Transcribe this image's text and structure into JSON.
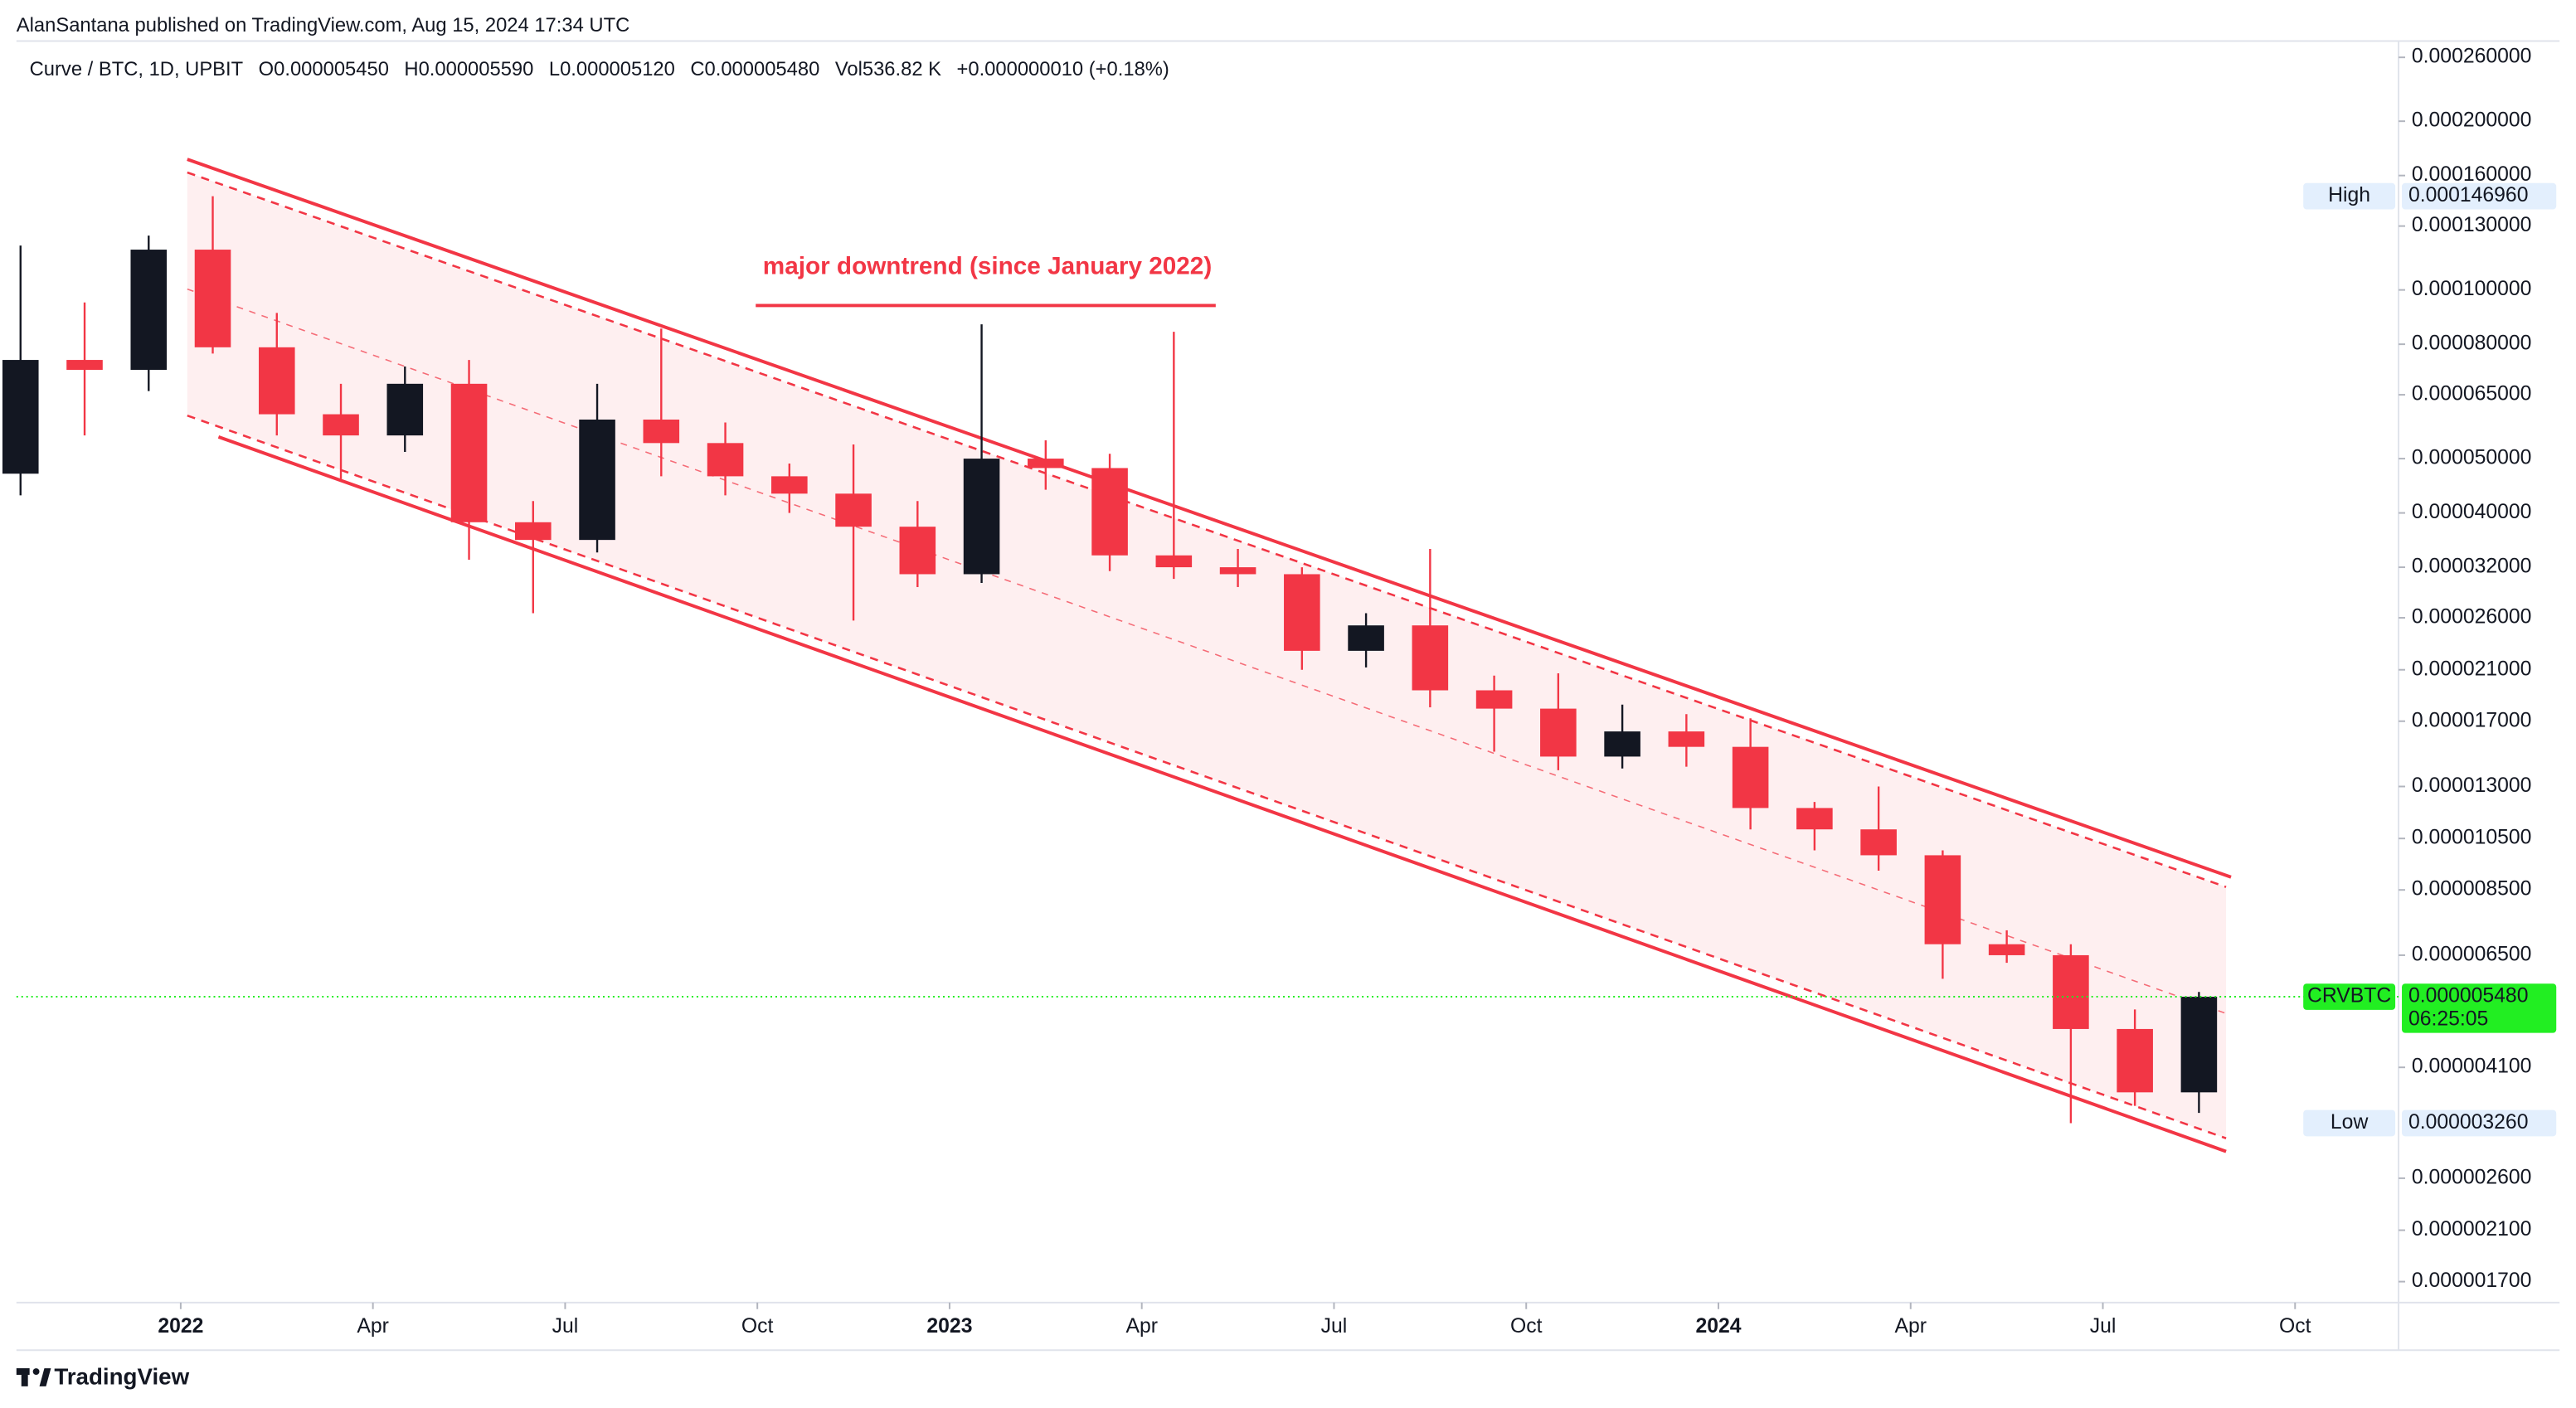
{
  "attribution": "AlanSantana published on TradingView.com, Aug 15, 2024 17:34 UTC",
  "brand": "TradingView",
  "chart_data": {
    "type": "candlestick",
    "legend": {
      "symbol": "Curve / BTC, 1D, UPBIT",
      "items": [
        "O0.000005450",
        "H0.000005590",
        "L0.000005120",
        "C0.000005480",
        "Vol536.82 K",
        "+0.000000010 (+0.18%)"
      ]
    },
    "annotation": "major downtrend (since January 2022)",
    "log_scale": true,
    "grid": false,
    "up_color": "#131722",
    "down_color": "#f23645",
    "x": [
      "2021-10",
      "2021-11",
      "2021-12",
      "2022-01",
      "2022-02",
      "2022-03",
      "2022-04",
      "2022-05",
      "2022-06",
      "2022-07",
      "2022-08",
      "2022-09",
      "2022-10",
      "2022-11",
      "2022-12",
      "2023-01",
      "2023-02",
      "2023-03",
      "2023-04",
      "2023-05",
      "2023-06",
      "2023-07",
      "2023-08",
      "2023-09",
      "2023-10",
      "2023-11",
      "2023-12",
      "2024-01",
      "2024-02",
      "2024-03",
      "2024-04",
      "2024-05",
      "2024-06",
      "2024-07",
      "2024-08"
    ],
    "open": [
      4.7e-05,
      7.5e-05,
      7.2e-05,
      0.000118,
      7.9e-05,
      6e-05,
      5.5e-05,
      6.8e-05,
      3.85e-05,
      3.58e-05,
      5.87e-05,
      5.33e-05,
      4.65e-05,
      4.33e-05,
      3.78e-05,
      3.11e-05,
      5e-05,
      4.81e-05,
      3.36e-05,
      3.2e-05,
      3.11e-05,
      2.27e-05,
      2.52e-05,
      1.93e-05,
      1.79e-05,
      1.47e-05,
      1.63e-05,
      1.53e-05,
      1.19e-05,
      1.09e-05,
      9.8e-06,
      6.8e-06,
      6.5e-06,
      4.8e-06,
      3.7e-06
    ],
    "high": [
      0.00012,
      9.5e-05,
      0.000125,
      0.00014696,
      9.1e-05,
      6.8e-05,
      7.3e-05,
      7.5e-05,
      4.2e-05,
      6.8e-05,
      8.53e-05,
      5.8e-05,
      4.9e-05,
      5.3e-05,
      4.2e-05,
      8.68e-05,
      5.39e-05,
      5.1e-05,
      8.42e-05,
      3.45e-05,
      3.2e-05,
      2.65e-05,
      3.45e-05,
      2.05e-05,
      2.07e-05,
      1.82e-05,
      1.75e-05,
      1.72e-05,
      1.22e-05,
      1.3e-05,
      1e-05,
      7.2e-06,
      6.8e-06,
      5.2e-06,
      5.59e-06
    ],
    "low": [
      4.3e-05,
      5.5e-05,
      6.6e-05,
      7.7e-05,
      5.5e-05,
      4.6e-05,
      5.14e-05,
      3.3e-05,
      2.65e-05,
      3.4e-05,
      4.65e-05,
      4.3e-05,
      4e-05,
      2.57e-05,
      2.95e-05,
      3e-05,
      4.4e-05,
      3.15e-05,
      3.05e-05,
      2.95e-05,
      2.1e-05,
      2.12e-05,
      1.8e-05,
      1.5e-05,
      1.39e-05,
      1.4e-05,
      1.41e-05,
      1.09e-05,
      1e-05,
      9.2e-06,
      5.9e-06,
      6.3e-06,
      3.26e-06,
      3.5e-06,
      3.4e-06
    ],
    "close": [
      7.5e-05,
      7.2e-05,
      0.000118,
      7.9e-05,
      6e-05,
      5.5e-05,
      6.8e-05,
      3.85e-05,
      3.58e-05,
      5.87e-05,
      5.33e-05,
      4.65e-05,
      4.33e-05,
      3.78e-05,
      3.11e-05,
      5e-05,
      4.81e-05,
      3.36e-05,
      3.2e-05,
      3.11e-05,
      2.27e-05,
      2.52e-05,
      1.93e-05,
      1.79e-05,
      1.47e-05,
      1.63e-05,
      1.53e-05,
      1.19e-05,
      1.09e-05,
      9.8e-06,
      6.8e-06,
      6.5e-06,
      4.8e-06,
      3.7e-06,
      5.48e-06
    ],
    "ylim": [
      1.56e-06,
      0.000278
    ],
    "yticks": [
      {
        "value": 0.00026,
        "label": "0.000260000"
      },
      {
        "value": 0.0002,
        "label": "0.000200000"
      },
      {
        "value": 0.00016,
        "label": "0.000160000"
      },
      {
        "value": 0.00013,
        "label": "0.000130000"
      },
      {
        "value": 0.0001,
        "label": "0.000100000"
      },
      {
        "value": 8e-05,
        "label": "0.000080000"
      },
      {
        "value": 6.5e-05,
        "label": "0.000065000"
      },
      {
        "value": 5e-05,
        "label": "0.000050000"
      },
      {
        "value": 4e-05,
        "label": "0.000040000"
      },
      {
        "value": 3.2e-05,
        "label": "0.000032000"
      },
      {
        "value": 2.6e-05,
        "label": "0.000026000"
      },
      {
        "value": 2.1e-05,
        "label": "0.000021000"
      },
      {
        "value": 1.7e-05,
        "label": "0.000017000"
      },
      {
        "value": 1.3e-05,
        "label": "0.000013000"
      },
      {
        "value": 1.05e-05,
        "label": "0.000010500"
      },
      {
        "value": 8.5e-06,
        "label": "0.000008500"
      },
      {
        "value": 6.5e-06,
        "label": "0.000006500"
      },
      {
        "value": 4.1e-06,
        "label": "0.000004100"
      },
      {
        "value": 2.6e-06,
        "label": "0.000002600"
      },
      {
        "value": 2.1e-06,
        "label": "0.000002100"
      },
      {
        "value": 1.7e-06,
        "label": "0.000001700"
      }
    ],
    "xticks": [
      {
        "value": "2022-01",
        "label": "2022"
      },
      {
        "value": "2022-04",
        "label": "Apr"
      },
      {
        "value": "2022-07",
        "label": "Jul"
      },
      {
        "value": "2022-10",
        "label": "Oct"
      },
      {
        "value": "2023-01",
        "label": "2023"
      },
      {
        "value": "2023-04",
        "label": "Apr"
      },
      {
        "value": "2023-07",
        "label": "Jul"
      },
      {
        "value": "2023-10",
        "label": "Oct"
      },
      {
        "value": "2024-01",
        "label": "2024"
      },
      {
        "value": "2024-04",
        "label": "Apr"
      },
      {
        "value": "2024-07",
        "label": "Jul"
      },
      {
        "value": "2024-10",
        "label": "Oct"
      }
    ],
    "price_labels": [
      {
        "name": "High",
        "value": 0.00014696,
        "label": "0.000146960",
        "color": "#e3effd"
      },
      {
        "name": "CRVBTC",
        "value": 5.48e-06,
        "label": "0.000005480",
        "countdown": "06:25:05",
        "color": "#22ee22"
      },
      {
        "name": "Low",
        "value": 3.26e-06,
        "label": "0.000003260",
        "color": "#e3effd"
      }
    ]
  }
}
